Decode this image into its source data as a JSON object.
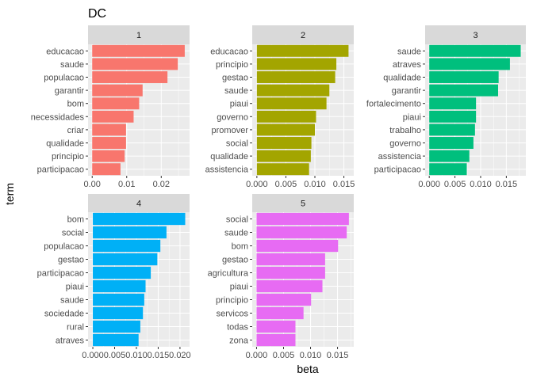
{
  "chart_data": {
    "type": "bar",
    "orientation": "horizontal",
    "title": "DC",
    "xlabel": "beta",
    "ylabel": "term",
    "grid": true,
    "legend": "none",
    "panels": [
      {
        "strip": "1",
        "color": "#F8766D",
        "xlim": [
          -0.0012,
          0.0282
        ],
        "ticks": [
          0.0,
          0.01,
          0.02
        ],
        "tick_labels": [
          "0.00",
          "0.01",
          "0.02"
        ],
        "terms": [
          "educacao",
          "saude",
          "populacao",
          "garantir",
          "bom",
          "necessidades",
          "criar",
          "qualidade",
          "principio",
          "participacao"
        ],
        "values": [
          0.0268,
          0.0248,
          0.0218,
          0.0146,
          0.0136,
          0.012,
          0.0098,
          0.0098,
          0.0094,
          0.0082
        ]
      },
      {
        "strip": "2",
        "color": "#A3A500",
        "xlim": [
          -0.0008,
          0.0167
        ],
        "ticks": [
          0.0,
          0.005,
          0.01,
          0.015
        ],
        "tick_labels": [
          "0.000",
          "0.005",
          "0.010",
          "0.015"
        ],
        "terms": [
          "educacao",
          "principio",
          "gestao",
          "saude",
          "piaui",
          "governo",
          "promover",
          "social",
          "qualidade",
          "assistencia"
        ],
        "values": [
          0.0158,
          0.0137,
          0.0135,
          0.0125,
          0.012,
          0.0102,
          0.01,
          0.0094,
          0.0093,
          0.009
        ]
      },
      {
        "strip": "3",
        "color": "#00BF7D",
        "xlim": [
          -0.0008,
          0.0188
        ],
        "ticks": [
          0.0,
          0.005,
          0.01,
          0.015
        ],
        "tick_labels": [
          "0.000",
          "0.005",
          "0.010",
          "0.015"
        ],
        "terms": [
          "saude",
          "atraves",
          "qualidade",
          "garantir",
          "fortalecimento",
          "piaui",
          "trabalho",
          "governo",
          "assistencia",
          "participacao"
        ],
        "values": [
          0.0178,
          0.0157,
          0.0135,
          0.0134,
          0.0091,
          0.0091,
          0.0089,
          0.0086,
          0.0078,
          0.0073
        ]
      },
      {
        "strip": "4",
        "color": "#00B0F6",
        "xlim": [
          -0.0011,
          0.0222
        ],
        "ticks": [
          0.0,
          0.005,
          0.01,
          0.015,
          0.02
        ],
        "tick_labels": [
          "0.000",
          "0.005",
          "0.010",
          "0.015",
          "0.020"
        ],
        "terms": [
          "bom",
          "social",
          "populacao",
          "gestao",
          "participacao",
          "piaui",
          "saude",
          "sociedade",
          "rural",
          "atraves"
        ],
        "values": [
          0.0212,
          0.0169,
          0.0155,
          0.0148,
          0.0133,
          0.0121,
          0.0118,
          0.0115,
          0.0109,
          0.0105
        ]
      },
      {
        "strip": "5",
        "color": "#E76BF3",
        "xlim": [
          -0.0008,
          0.018
        ],
        "ticks": [
          0.0,
          0.005,
          0.01,
          0.015
        ],
        "tick_labels": [
          "0.000",
          "0.005",
          "0.010",
          "0.015"
        ],
        "terms": [
          "social",
          "saude",
          "bom",
          "gestao",
          "agricultura",
          "piaui",
          "principio",
          "servicos",
          "todas",
          "zona"
        ],
        "values": [
          0.0171,
          0.0167,
          0.0151,
          0.0127,
          0.0127,
          0.0122,
          0.0101,
          0.0087,
          0.0072,
          0.0072
        ]
      }
    ]
  }
}
